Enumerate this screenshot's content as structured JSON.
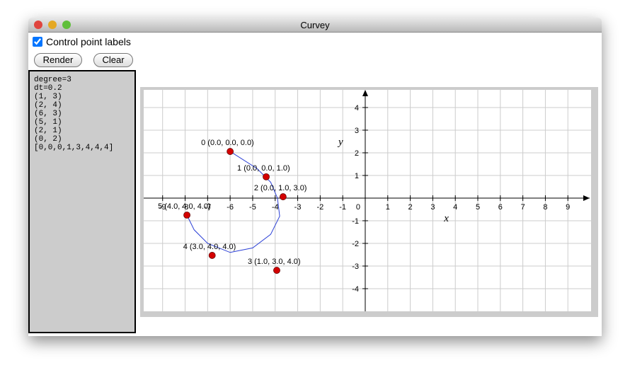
{
  "window": {
    "title": "Curvey"
  },
  "controls": {
    "checkbox_label": "Control point labels",
    "checked": true,
    "buttons": [
      "Render",
      "Clear"
    ]
  },
  "editor": {
    "lines": [
      "degree=3",
      "dt=0.2",
      "(1, 3)",
      "(2, 4)",
      "(6, 3)",
      "(5, 1)",
      "(2, 1)",
      "(0, 2)",
      "[0,0,0,1,3,4,4,4]"
    ]
  },
  "chart_data": {
    "type": "scatter",
    "x_label": "x",
    "y_label": "y",
    "xlim": [
      -9.84,
      10.03
    ],
    "ylim": [
      -5,
      4.78
    ],
    "xticks": [
      -9,
      -8,
      -7,
      -6,
      -5,
      -4,
      -3,
      -2,
      -1,
      0,
      1,
      2,
      3,
      4,
      5,
      6,
      7,
      8,
      9
    ],
    "yticks": [
      -4,
      -3,
      -2,
      -1,
      1,
      2,
      3,
      4
    ],
    "grid": true,
    "points": {
      "color": "#d40000",
      "x": [
        -6,
        -4.4,
        -3.65,
        -3.93,
        -6.8,
        -7.92
      ],
      "y": [
        2.06,
        0.94,
        0.06,
        -3.19,
        -2.53,
        -0.75
      ],
      "labels": [
        "0 (0.0, 0.0, 0.0)",
        "1 (0.0, 0.0, 1.0)",
        "2 (0.0, 1.0, 3.0)",
        "3 (1.0, 3.0, 4.0)",
        "4 (3.0, 4.0, 4.0)",
        "5 (4.0, 4.0, 4.0)"
      ]
    },
    "curve": {
      "color": "#2a3fd6",
      "x": [
        -6,
        -4.8,
        -4.2,
        -3.9,
        -3.8,
        -4.2,
        -5,
        -6,
        -7,
        -7.6,
        -7.92
      ],
      "y": [
        2.06,
        1.3,
        0.7,
        0,
        -0.8,
        -1.6,
        -2.2,
        -2.4,
        -2.0,
        -1.4,
        -0.75
      ]
    }
  }
}
